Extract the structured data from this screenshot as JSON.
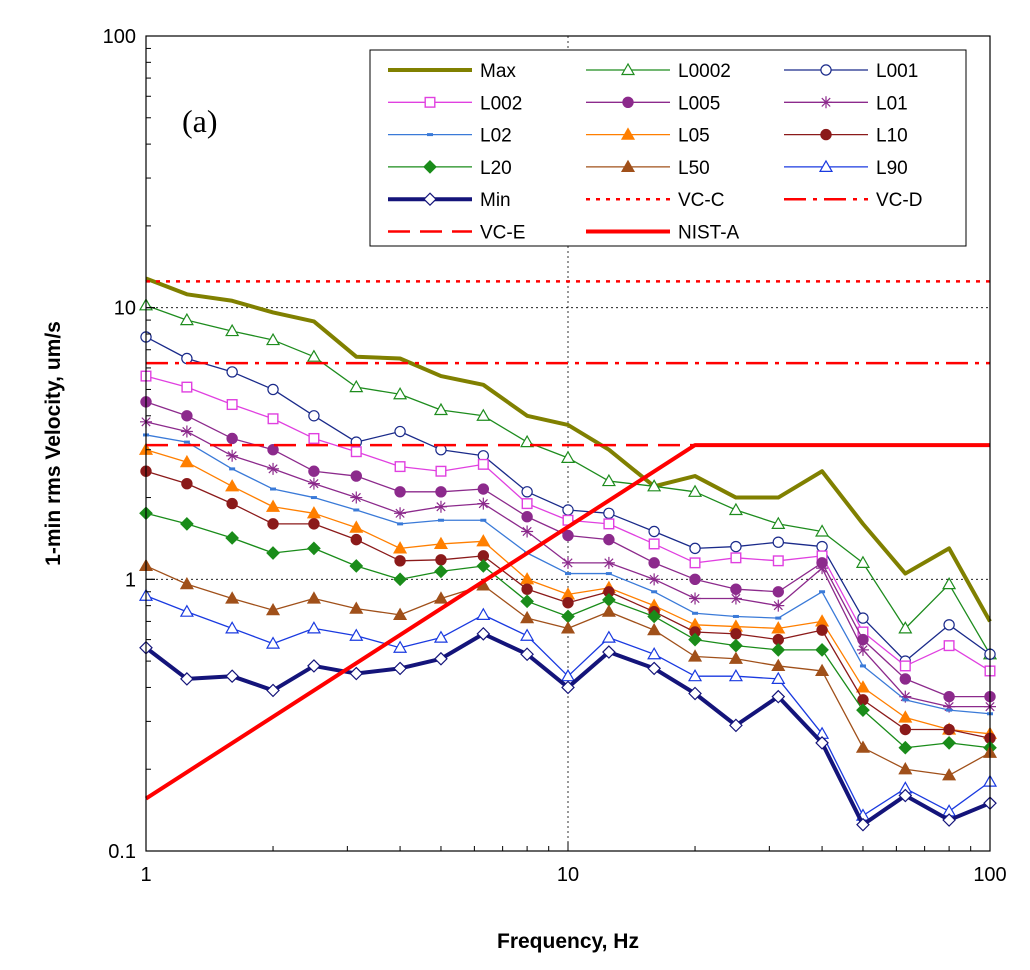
{
  "chart_data": {
    "type": "line",
    "title": "",
    "panel_label": "(a)",
    "xlabel": "Frequency, Hz",
    "ylabel": "1-min rms Velocity, um/s",
    "xscale": "log",
    "yscale": "log",
    "xlim": [
      1,
      100
    ],
    "ylim": [
      0.1,
      100
    ],
    "x_ticks": [
      "1",
      "10",
      "100"
    ],
    "y_ticks": [
      "0.1",
      "1",
      "10",
      "100"
    ],
    "grid": "dotted at decades",
    "legend_position": "top-right",
    "x": [
      1,
      1.25,
      1.6,
      2,
      2.5,
      3.15,
      4,
      5,
      6.3,
      8,
      10,
      12.5,
      16,
      20,
      25,
      31.5,
      40,
      50,
      63,
      80,
      100
    ],
    "series": [
      {
        "name": "Max",
        "color": "#808000",
        "style": "thick",
        "marker": "none",
        "values": [
          12.8,
          11.2,
          10.6,
          9.6,
          8.9,
          6.6,
          6.5,
          5.6,
          5.2,
          4.0,
          3.7,
          3.0,
          2.2,
          2.4,
          2.0,
          2.0,
          2.5,
          1.6,
          1.05,
          1.3,
          0.7
        ]
      },
      {
        "name": "L0002",
        "color": "#1e8c1e",
        "style": "thin",
        "marker": "triangle-open",
        "values": [
          10.2,
          9.0,
          8.2,
          7.6,
          6.6,
          5.1,
          4.8,
          4.2,
          4.0,
          3.2,
          2.8,
          2.3,
          2.2,
          2.1,
          1.8,
          1.6,
          1.5,
          1.15,
          0.66,
          0.96,
          0.53
        ]
      },
      {
        "name": "L001",
        "color": "#1a2a8a",
        "style": "thin",
        "marker": "circle-open",
        "values": [
          7.8,
          6.5,
          5.8,
          5.0,
          4.0,
          3.2,
          3.5,
          3.0,
          2.85,
          2.1,
          1.8,
          1.75,
          1.5,
          1.3,
          1.32,
          1.37,
          1.32,
          0.72,
          0.5,
          0.68,
          0.53
        ]
      },
      {
        "name": "L002",
        "color": "#e040e0",
        "style": "thin",
        "marker": "square-open",
        "values": [
          5.6,
          5.1,
          4.4,
          3.9,
          3.3,
          2.95,
          2.6,
          2.5,
          2.65,
          1.9,
          1.65,
          1.6,
          1.35,
          1.15,
          1.2,
          1.17,
          1.22,
          0.64,
          0.48,
          0.57,
          0.46
        ]
      },
      {
        "name": "L005",
        "color": "#8c2a8c",
        "style": "thin",
        "marker": "circle-filled",
        "values": [
          4.5,
          4.0,
          3.3,
          3.0,
          2.5,
          2.4,
          2.1,
          2.1,
          2.15,
          1.7,
          1.45,
          1.4,
          1.15,
          1.0,
          0.92,
          0.9,
          1.15,
          0.6,
          0.43,
          0.37,
          0.37
        ]
      },
      {
        "name": "L01",
        "color": "#8c2a8c",
        "style": "thin",
        "marker": "star",
        "values": [
          3.8,
          3.5,
          2.85,
          2.55,
          2.25,
          2.0,
          1.75,
          1.85,
          1.9,
          1.5,
          1.15,
          1.15,
          1.0,
          0.85,
          0.85,
          0.8,
          1.1,
          0.55,
          0.37,
          0.34,
          0.34
        ]
      },
      {
        "name": "L02",
        "color": "#3a7ad8",
        "style": "thin",
        "marker": "dash",
        "values": [
          3.4,
          3.2,
          2.55,
          2.15,
          2.0,
          1.8,
          1.6,
          1.65,
          1.65,
          1.25,
          1.05,
          1.05,
          0.9,
          0.75,
          0.73,
          0.72,
          0.9,
          0.48,
          0.36,
          0.33,
          0.32
        ]
      },
      {
        "name": "L05",
        "color": "#ff7f00",
        "style": "thin",
        "marker": "triangle-filled",
        "values": [
          3.0,
          2.7,
          2.2,
          1.85,
          1.75,
          1.55,
          1.3,
          1.35,
          1.38,
          1.0,
          0.88,
          0.93,
          0.8,
          0.68,
          0.67,
          0.66,
          0.7,
          0.4,
          0.31,
          0.28,
          0.27
        ]
      },
      {
        "name": "L10",
        "color": "#8b1a1a",
        "style": "thin",
        "marker": "circle-filled",
        "values": [
          2.5,
          2.25,
          1.9,
          1.6,
          1.6,
          1.4,
          1.17,
          1.18,
          1.22,
          0.92,
          0.82,
          0.9,
          0.76,
          0.64,
          0.63,
          0.6,
          0.65,
          0.36,
          0.28,
          0.28,
          0.26
        ]
      },
      {
        "name": "L20",
        "color": "#1a8c1a",
        "style": "thin",
        "marker": "diamond-filled",
        "values": [
          1.75,
          1.6,
          1.42,
          1.25,
          1.3,
          1.12,
          1.0,
          1.07,
          1.12,
          0.83,
          0.73,
          0.84,
          0.73,
          0.6,
          0.57,
          0.55,
          0.55,
          0.33,
          0.24,
          0.25,
          0.24
        ]
      },
      {
        "name": "L50",
        "color": "#a0501a",
        "style": "thin",
        "marker": "triangle-filled",
        "values": [
          1.12,
          0.96,
          0.85,
          0.77,
          0.85,
          0.78,
          0.74,
          0.85,
          0.95,
          0.72,
          0.66,
          0.76,
          0.65,
          0.52,
          0.51,
          0.48,
          0.46,
          0.24,
          0.2,
          0.19,
          0.23
        ]
      },
      {
        "name": "L90",
        "color": "#1a3ae0",
        "style": "thin",
        "marker": "triangle-open",
        "values": [
          0.87,
          0.76,
          0.66,
          0.58,
          0.66,
          0.62,
          0.56,
          0.61,
          0.74,
          0.62,
          0.44,
          0.61,
          0.53,
          0.44,
          0.44,
          0.43,
          0.27,
          0.135,
          0.17,
          0.14,
          0.18
        ]
      },
      {
        "name": "Min",
        "color": "#14147a",
        "style": "thick",
        "marker": "diamond-open",
        "values": [
          0.56,
          0.43,
          0.44,
          0.39,
          0.48,
          0.45,
          0.47,
          0.51,
          0.63,
          0.53,
          0.4,
          0.54,
          0.47,
          0.38,
          0.29,
          0.37,
          0.25,
          0.125,
          0.16,
          0.13,
          0.15
        ]
      },
      {
        "name": "VC-C",
        "color": "#ff0000",
        "style": "dotted",
        "marker": "none",
        "x_values": [
          1,
          100
        ],
        "values": [
          12.5,
          12.5
        ]
      },
      {
        "name": "VC-D",
        "color": "#ff0000",
        "style": "dashdot",
        "marker": "none",
        "x_values": [
          1,
          100
        ],
        "values": [
          6.25,
          6.25
        ]
      },
      {
        "name": "VC-E",
        "color": "#ff0000",
        "style": "dashed",
        "marker": "none",
        "x_values": [
          1,
          100
        ],
        "values": [
          3.12,
          3.12
        ]
      },
      {
        "name": "NIST-A",
        "color": "#ff0000",
        "style": "solid-thick",
        "marker": "none",
        "x_values": [
          1,
          20,
          100
        ],
        "values": [
          0.156,
          3.12,
          3.12
        ]
      }
    ]
  }
}
